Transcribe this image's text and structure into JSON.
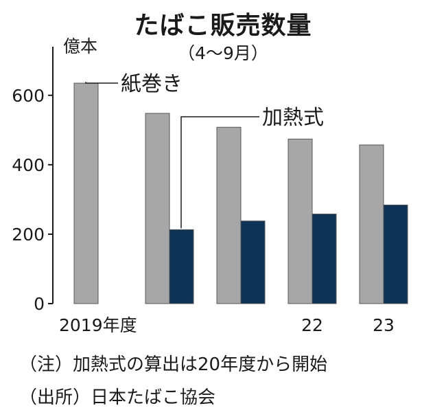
{
  "title": "たばこ販売数量",
  "subtitle": "（4〜9月）",
  "chart_data": {
    "type": "bar",
    "unit": "億本",
    "categories": [
      "2019年度",
      "",
      "",
      "22",
      "23"
    ],
    "series": [
      {
        "name": "紙巻き",
        "values": [
          635,
          548,
          508,
          474,
          457
        ],
        "color": "#a7a7a7"
      },
      {
        "name": "加熱式",
        "values": [
          null,
          213,
          238,
          258,
          284
        ],
        "color": "#0c3355"
      }
    ],
    "y_ticks": [
      0,
      200,
      400,
      600
    ],
    "ylim": [
      0,
      740
    ],
    "grid": false
  },
  "notes": [
    "（注）加熱式の算出は20年度から開始",
    "（出所）日本たばこ協会"
  ]
}
